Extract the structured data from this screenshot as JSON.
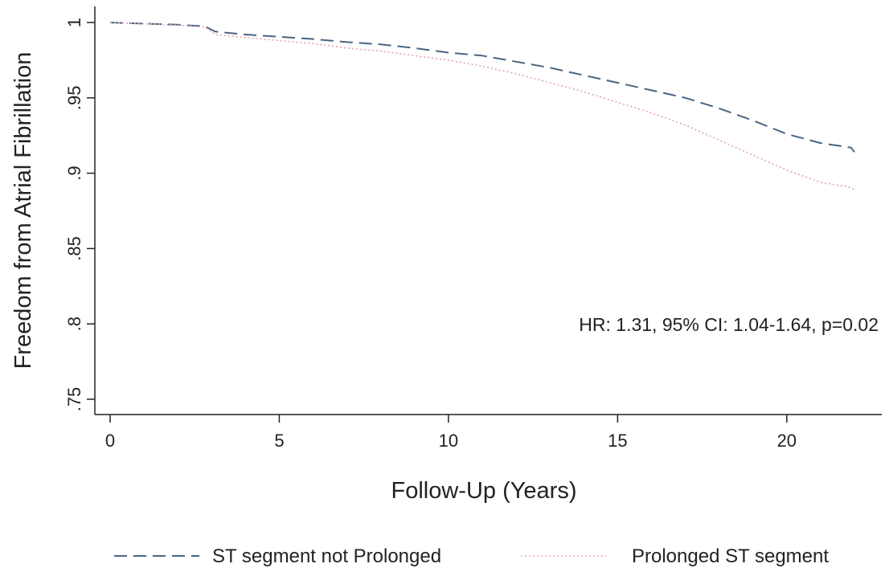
{
  "chart_data": {
    "type": "line",
    "title": "",
    "xlabel": "Follow-Up (Years)",
    "ylabel": "Freedom from Atrial Fibrillation",
    "xlim": [
      0,
      22
    ],
    "ylim": [
      0.75,
      1.0
    ],
    "xticks": [
      0,
      5,
      10,
      15,
      20
    ],
    "xtick_labels": [
      "0",
      "5",
      "10",
      "15",
      "20"
    ],
    "yticks": [
      0.75,
      0.8,
      0.85,
      0.9,
      0.95,
      1.0
    ],
    "ytick_labels": [
      ".75",
      ".8",
      ".85",
      ".9",
      ".95",
      "1"
    ],
    "grid": false,
    "legend_position": "bottom",
    "annotation": "HR: 1.31, 95% CI: 1.04-1.64, p=0.02",
    "series": [
      {
        "name": "ST segment not Prolonged",
        "color": "#4a6582",
        "style": "dashed",
        "x": [
          0,
          1,
          2,
          2.8,
          3.1,
          4,
          5,
          6,
          7,
          8,
          9,
          10,
          11,
          12,
          13,
          14,
          15,
          16,
          17,
          18,
          19,
          20,
          21,
          21.9,
          22
        ],
        "y": [
          1.0,
          0.9992,
          0.9985,
          0.9975,
          0.994,
          0.992,
          0.9905,
          0.989,
          0.987,
          0.9855,
          0.983,
          0.98,
          0.978,
          0.974,
          0.97,
          0.965,
          0.96,
          0.955,
          0.95,
          0.943,
          0.935,
          0.926,
          0.92,
          0.917,
          0.914
        ]
      },
      {
        "name": "Prolonged ST segment",
        "color": "#e2a4ad",
        "style": "dotted",
        "x": [
          0,
          1,
          2,
          2.8,
          3.1,
          4,
          5,
          6,
          7,
          8,
          9,
          10,
          11,
          12,
          13,
          14,
          15,
          16,
          17,
          18,
          19,
          20,
          21,
          21.8,
          22
        ],
        "y": [
          1.0,
          0.9992,
          0.9982,
          0.997,
          0.992,
          0.99,
          0.988,
          0.986,
          0.983,
          0.981,
          0.978,
          0.975,
          0.971,
          0.966,
          0.96,
          0.954,
          0.947,
          0.94,
          0.932,
          0.922,
          0.912,
          0.902,
          0.894,
          0.891,
          0.889
        ]
      }
    ]
  }
}
